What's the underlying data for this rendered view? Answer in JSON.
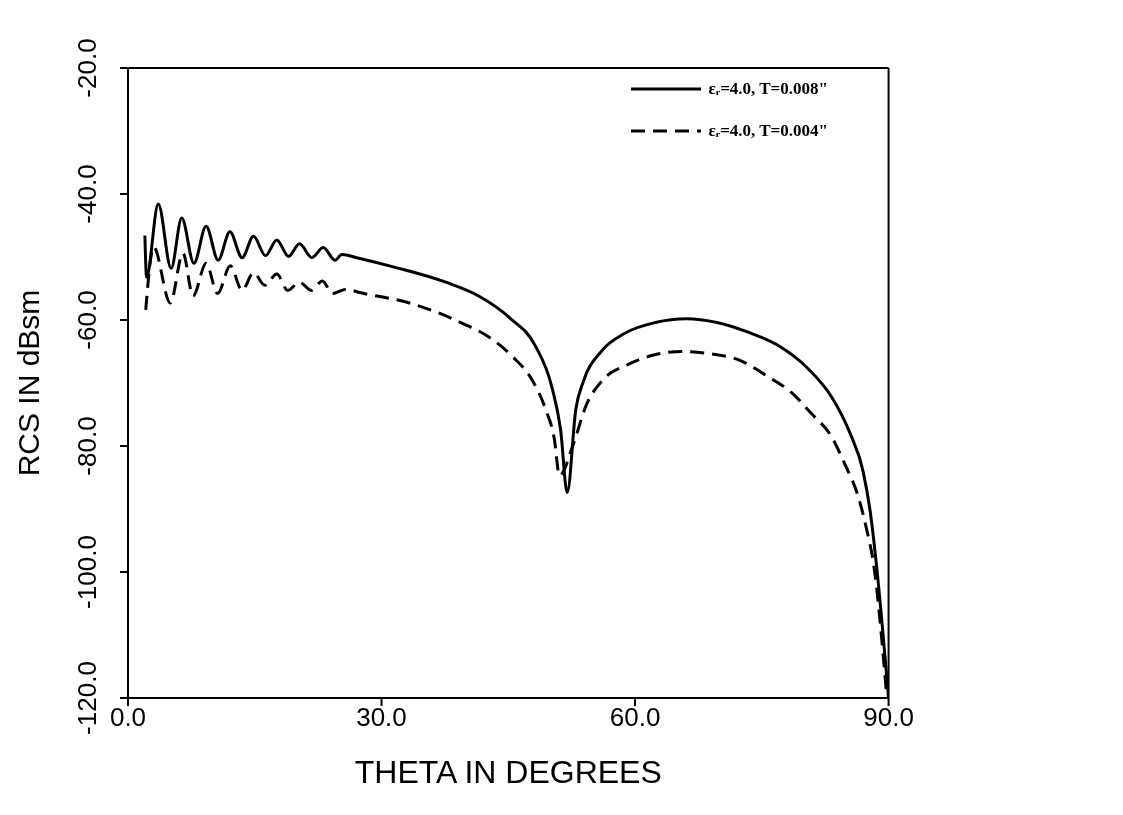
{
  "chart_data": {
    "type": "line",
    "xlabel": "THETA IN DEGREES",
    "ylabel": "RCS IN dBsm",
    "xlim": [
      0,
      90
    ],
    "xticks": [
      {
        "value": 0,
        "label": "0.0"
      },
      {
        "value": 30,
        "label": "30.0"
      },
      {
        "value": 60,
        "label": "60.0"
      },
      {
        "value": 90,
        "label": "90.0"
      }
    ],
    "ylim": [
      -120,
      -20
    ],
    "yticks": [
      {
        "value": -120,
        "label": "-120.0"
      },
      {
        "value": -100,
        "label": "-100.0"
      },
      {
        "value": -80,
        "label": "-80.0"
      },
      {
        "value": -60,
        "label": "-60.0"
      },
      {
        "value": -40,
        "label": "-40.0"
      },
      {
        "value": -20,
        "label": "-20.0"
      }
    ],
    "grid": false,
    "legend": "top right",
    "marker": "none",
    "series": [
      {
        "name": "εᵣ=4.0, T=0.008\"",
        "color": "#000000",
        "line_style": "solid",
        "x": [
          2.0,
          2.2,
          3.58,
          5.1,
          6.36,
          7.8,
          9.24,
          10.67,
          12.06,
          13.5,
          14.85,
          16.27,
          17.6,
          19.0,
          20.3,
          21.75,
          23.1,
          24.5,
          25.3,
          27.3,
          31.5,
          37.6,
          41.5,
          45.2,
          48.2,
          50.15,
          51.2,
          51.97,
          53.0,
          53.9,
          56.06,
          58.8,
          62.4,
          66.1,
          69.7,
          73.3,
          77.0,
          80.3,
          83.3,
          85.45,
          87.0,
          87.9,
          88.5,
          90.0
        ],
        "values": [
          -46.6,
          -53.2,
          -41.6,
          -51.8,
          -43.8,
          -51.0,
          -45.1,
          -50.5,
          -46.0,
          -50.1,
          -46.7,
          -49.8,
          -47.3,
          -49.9,
          -47.9,
          -50.1,
          -48.5,
          -50.5,
          -49.6,
          -50.2,
          -51.6,
          -54.0,
          -56.2,
          -59.7,
          -64.1,
          -70.6,
          -77.5,
          -87.4,
          -74.1,
          -69.7,
          -64.9,
          -62.1,
          -60.4,
          -59.8,
          -60.4,
          -61.9,
          -64.1,
          -67.5,
          -72.3,
          -78.0,
          -84.1,
          -91.1,
          -98.0,
          -120.0
        ]
      },
      {
        "name": "εᵣ=4.0, T=0.004\"",
        "color": "#000000",
        "line_style": "dashed",
        "x": [
          2.1,
          3.03,
          5.0,
          6.5,
          7.7,
          9.24,
          10.6,
          12.1,
          13.5,
          14.85,
          16.2,
          17.6,
          18.9,
          20.3,
          21.7,
          23.0,
          24.2,
          25.8,
          27.3,
          33.3,
          36.6,
          39.7,
          42.7,
          45.5,
          47.9,
          49.4,
          50.45,
          51.06,
          52.7,
          54.2,
          56.06,
          59.1,
          62.1,
          65.6,
          69.1,
          72.4,
          75.5,
          78.5,
          80.9,
          83.2,
          84.8,
          86.4,
          87.4,
          88.2,
          89.8
        ],
        "values": [
          -58.4,
          -48.4,
          -57.3,
          -49.4,
          -56.2,
          -51.0,
          -55.8,
          -51.4,
          -55.3,
          -52.5,
          -54.5,
          -52.7,
          -55.3,
          -54.0,
          -55.3,
          -53.8,
          -55.8,
          -55.1,
          -55.6,
          -57.3,
          -58.8,
          -60.6,
          -62.7,
          -65.8,
          -69.7,
          -74.1,
          -78.9,
          -84.7,
          -79.7,
          -73.6,
          -69.7,
          -67.1,
          -65.6,
          -65.0,
          -65.4,
          -66.4,
          -68.8,
          -71.5,
          -74.9,
          -78.4,
          -82.8,
          -88.0,
          -93.2,
          -98.5,
          -120.0
        ]
      }
    ]
  }
}
